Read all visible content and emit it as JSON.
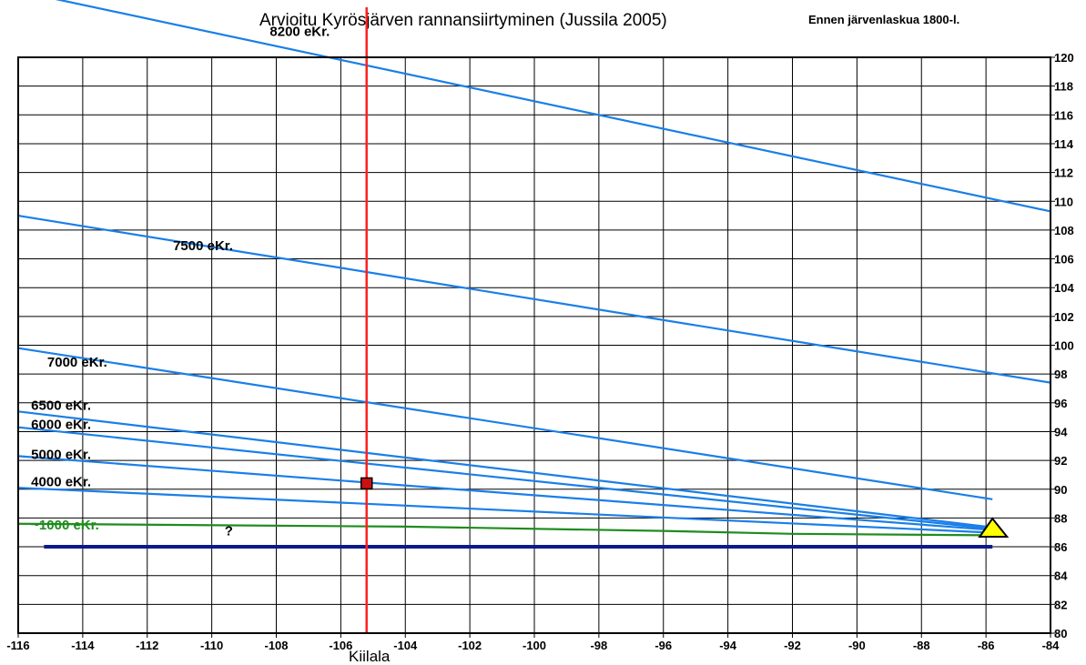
{
  "chart_data": {
    "type": "line",
    "title": "Arvioitu Kyrösjärven rannansiirtyminen (Jussila 2005)",
    "subtitle": "Ennen järvenlaskua 1800-l.",
    "x_ticks": [
      -116,
      -114,
      -112,
      -110,
      -108,
      -106,
      -104,
      -102,
      -100,
      -98,
      -96,
      -94,
      -92,
      -90,
      -88,
      -86,
      -84
    ],
    "y_ticks": [
      80,
      82,
      84,
      86,
      88,
      90,
      92,
      94,
      96,
      98,
      100,
      102,
      104,
      106,
      108,
      110,
      112,
      114,
      116,
      118,
      120
    ],
    "xlim": [
      -116,
      -84
    ],
    "ylim": [
      80,
      120
    ],
    "grid": true,
    "y_axis_side": "right",
    "series": [
      {
        "name": "8200 eKr.",
        "color": "#1a7fe8",
        "x": [
          -116,
          -84
        ],
        "y": [
          124.6,
          109.3
        ]
      },
      {
        "name": "7500 eKr.",
        "color": "#1a7fe8",
        "x": [
          -116,
          -84
        ],
        "y": [
          109.0,
          97.4
        ]
      },
      {
        "name": "7000 eKr.",
        "color": "#1a7fe8",
        "x": [
          -116,
          -85.8
        ],
        "y": [
          99.8,
          89.3
        ]
      },
      {
        "name": "6500 eKr.",
        "color": "#1a7fe8",
        "x": [
          -116,
          -86
        ],
        "y": [
          95.4,
          87.4
        ]
      },
      {
        "name": "6000 eKr.",
        "color": "#1a7fe8",
        "x": [
          -116,
          -86
        ],
        "y": [
          94.3,
          87.3
        ]
      },
      {
        "name": "5000 eKr.",
        "color": "#1a7fe8",
        "x": [
          -116,
          -86
        ],
        "y": [
          92.3,
          87.2
        ]
      },
      {
        "name": "4000 eKr.",
        "color": "#1a7fe8",
        "x": [
          -116,
          -86
        ],
        "y": [
          90.1,
          87.0
        ]
      },
      {
        "name": "~1000 eKr.",
        "color": "#1f8c1f",
        "x": [
          -116,
          -104,
          -96,
          -92,
          -86
        ],
        "y": [
          87.6,
          87.4,
          87.1,
          86.9,
          86.8
        ]
      },
      {
        "name": "",
        "color": "#0a1a8c",
        "x": [
          -115.2,
          -85.8
        ],
        "y": [
          86.0,
          86.0
        ]
      }
    ],
    "markers": [
      {
        "label": "Kiilala",
        "type": "vertical-line",
        "x": -105.2,
        "color": "#ff2020"
      },
      {
        "label": "",
        "type": "square",
        "x": -105.2,
        "y": 90.4,
        "color": "#cc1010"
      },
      {
        "label": "",
        "type": "triangle",
        "x": -85.8,
        "y": 87.2,
        "color": "#ffff00"
      },
      {
        "label": "?",
        "type": "text",
        "x": -109.6,
        "y": 87.3
      }
    ]
  }
}
